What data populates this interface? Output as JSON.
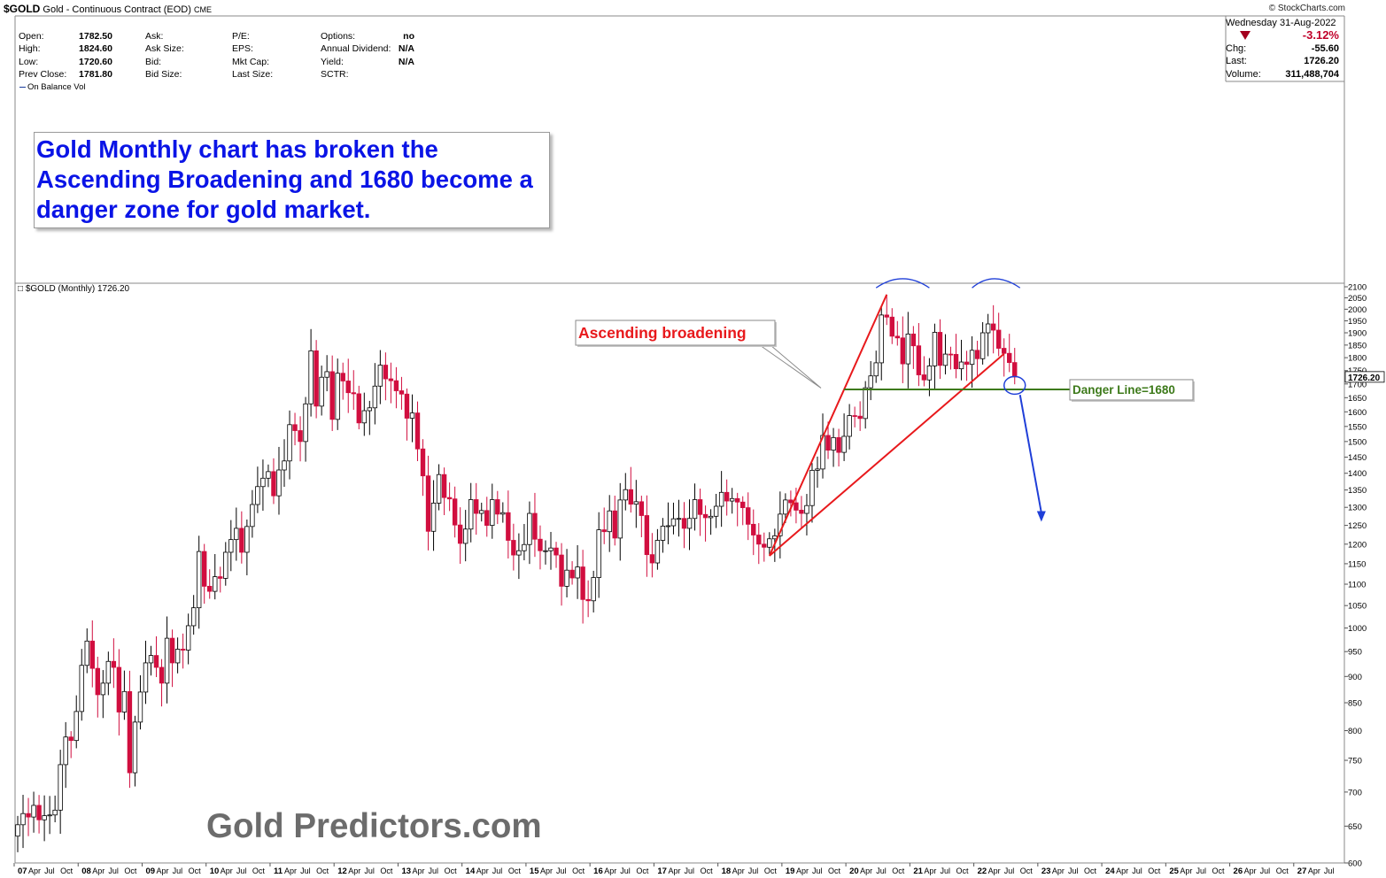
{
  "header": {
    "symbol": "$GOLD",
    "description": "Gold - Continuous Contract (EOD)",
    "exchange": "CME",
    "brand": "© StockCharts.com",
    "plot_label": "$GOLD (Monthly) 1726.20",
    "indicator_label": "On Balance Vol"
  },
  "stats": {
    "col1": [
      {
        "label": "Open:",
        "value": "1782.50"
      },
      {
        "label": "High:",
        "value": "1824.60"
      },
      {
        "label": "Low:",
        "value": "1720.60"
      },
      {
        "label": "Prev Close:",
        "value": "1781.80"
      }
    ],
    "col2": [
      {
        "label": "Ask:",
        "value": ""
      },
      {
        "label": "Ask Size:",
        "value": ""
      },
      {
        "label": "Bid:",
        "value": ""
      },
      {
        "label": "Bid Size:",
        "value": ""
      }
    ],
    "col3": [
      {
        "label": "P/E:",
        "value": ""
      },
      {
        "label": "EPS:",
        "value": ""
      },
      {
        "label": "Mkt Cap:",
        "value": ""
      },
      {
        "label": "Last Size:",
        "value": ""
      }
    ],
    "col4": [
      {
        "label": "Options:",
        "value": "no"
      },
      {
        "label": "Annual Dividend:",
        "value": "N/A"
      },
      {
        "label": "Yield:",
        "value": "N/A"
      },
      {
        "label": "SCTR:",
        "value": ""
      }
    ]
  },
  "quote": {
    "date": "Wednesday  31-Aug-2022",
    "pct_change": "-3.12%",
    "chg_label": "Chg:",
    "chg_value": "-55.60",
    "last_label": "Last:",
    "last_value": "1726.20",
    "volume_label": "Volume:",
    "volume_value": "311,488,704"
  },
  "annotation": {
    "text": "Gold Monthly chart has broken the Ascending Broadening and 1680 become a danger zone for gold market.",
    "ascending_label": "Ascending broadening",
    "danger_label": "Danger Line=1680"
  },
  "watermark": "Gold Predictors.com",
  "colors": {
    "up": "#ffffff",
    "down": "#d10e3f",
    "trendline": "#e8191c",
    "danger_line": "#3d7a1a",
    "arrow": "#1f3fd8",
    "annotation_text": "#0a14e6"
  },
  "chart_data": {
    "type": "candlestick",
    "title": "$GOLD (Monthly) 1726.20",
    "y_scale": "log",
    "ylim": [
      600,
      2100
    ],
    "y_ticks": [
      600,
      650,
      700,
      750,
      800,
      850,
      900,
      950,
      1000,
      1050,
      1100,
      1150,
      1200,
      1250,
      1300,
      1350,
      1400,
      1450,
      1500,
      1550,
      1600,
      1650,
      1700,
      1750,
      1800,
      1850,
      1900,
      1950,
      2000,
      2050,
      2100
    ],
    "x_axis": {
      "years": [
        "07",
        "08",
        "09",
        "10",
        "11",
        "12",
        "13",
        "14",
        "15",
        "16",
        "17",
        "18",
        "19",
        "20",
        "21",
        "22",
        "23",
        "24",
        "25",
        "26",
        "27"
      ],
      "month_labels": [
        "Apr",
        "Jul",
        "Oct"
      ]
    },
    "last_price_label": "1726.20",
    "close_series_start": "2007-01",
    "close_series_end": "2022-08",
    "monthly_close": [
      652,
      668,
      663,
      680,
      659,
      665,
      666,
      673,
      743,
      789,
      783,
      834,
      922,
      972,
      916,
      865,
      887,
      930,
      918,
      833,
      871,
      730,
      815,
      870,
      927,
      942,
      918,
      887,
      978,
      927,
      955,
      953,
      1005,
      1045,
      1181,
      1095,
      1083,
      1118,
      1114,
      1179,
      1212,
      1242,
      1179,
      1247,
      1308,
      1360,
      1385,
      1405,
      1333,
      1410,
      1438,
      1556,
      1536,
      1500,
      1628,
      1827,
      1620,
      1725,
      1746,
      1574,
      1740,
      1711,
      1668,
      1664,
      1562,
      1604,
      1614,
      1692,
      1771,
      1719,
      1712,
      1675,
      1663,
      1578,
      1596,
      1476,
      1392,
      1234,
      1312,
      1396,
      1328,
      1324,
      1251,
      1202,
      1240,
      1322,
      1283,
      1291,
      1250,
      1322,
      1281,
      1285,
      1210,
      1172,
      1183,
      1199,
      1283,
      1213,
      1183,
      1183,
      1190,
      1172,
      1095,
      1134,
      1115,
      1142,
      1064,
      1061,
      1116,
      1238,
      1233,
      1290,
      1216,
      1321,
      1351,
      1309,
      1316,
      1277,
      1173,
      1152,
      1210,
      1248,
      1249,
      1268,
      1269,
      1242,
      1269,
      1322,
      1280,
      1271,
      1275,
      1303,
      1343,
      1318,
      1325,
      1315,
      1299,
      1253,
      1224,
      1200,
      1192,
      1214,
      1222,
      1281,
      1321,
      1313,
      1292,
      1283,
      1305,
      1409,
      1413,
      1520,
      1472,
      1513,
      1465,
      1517,
      1587,
      1585,
      1577,
      1686,
      1730,
      1780,
      1975,
      1966,
      1886,
      1879,
      1776,
      1895,
      1847,
      1734,
      1715,
      1768,
      1902,
      1770,
      1814,
      1813,
      1757,
      1783,
      1774,
      1829,
      1796,
      1900,
      1937,
      1911,
      1837,
      1817,
      1781,
      1726
    ]
  }
}
